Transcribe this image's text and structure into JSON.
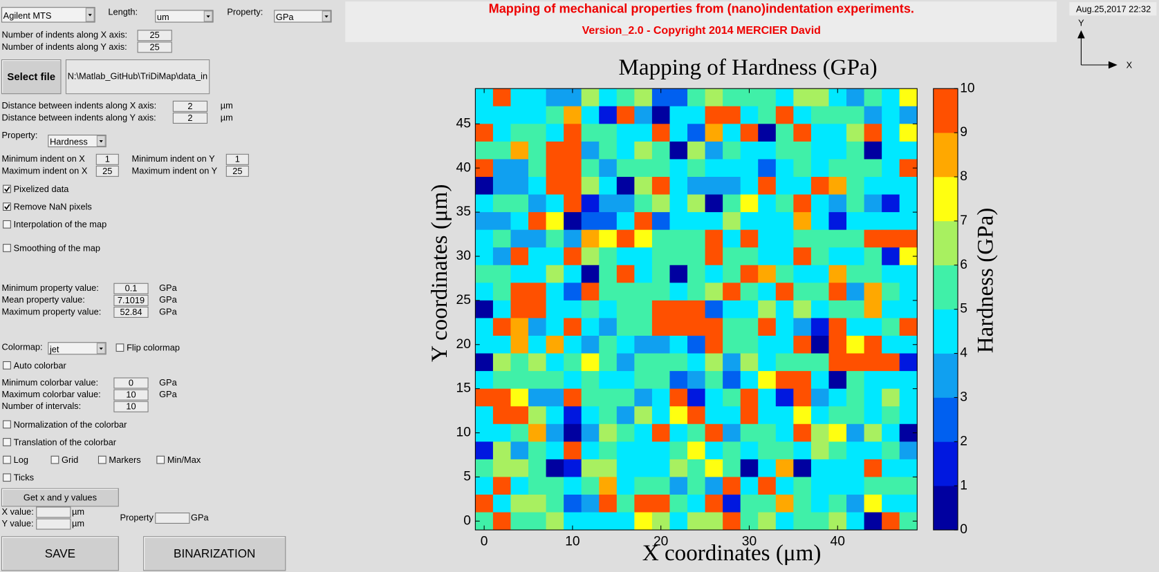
{
  "header": {
    "title": "Mapping of mechanical properties from (nano)indentation experiments.",
    "subtitle": "Version_2.0 - Copyright 2014 MERCIER David",
    "date": "Aug.25,2017 22:32",
    "axis_y": "Y",
    "axis_x": "X"
  },
  "controls": {
    "instrument": "Agilent MTS",
    "length_label": "Length:",
    "length_unit": "um",
    "property_label": "Property:",
    "property_unit": "GPa",
    "indents_x_label": "Number of indents along X axis:",
    "indents_x": "25",
    "indents_y_label": "Number of indents along Y axis:",
    "indents_y": "25",
    "select_file": "Select file",
    "file_path": "N:\\Matlab_GitHub\\TriDiMap\\data_in",
    "dist_x_label": "Distance between indents along X axis:",
    "dist_x": "2",
    "dist_y_label": "Distance between indents along Y axis:",
    "dist_y": "2",
    "unit_um": "µm",
    "unit_gpa": "GPa",
    "property2_label": "Property:",
    "property2": "Hardness",
    "min_x_label": "Minimum indent on X",
    "min_x": "1",
    "min_y_label": "Minimum indent on Y",
    "min_y": "1",
    "max_x_label": "Maximum indent on X",
    "max_x": "25",
    "max_y_label": "Maximum indent on Y",
    "max_y": "25",
    "min_prop_label": "Minimum property value:",
    "min_prop": "0.1",
    "mean_prop_label": "Mean property value:",
    "mean_prop": "7.1019",
    "max_prop_label": "Maximum property value:",
    "max_prop": "52.84",
    "colormap_label": "Colormap:",
    "colormap": "jet",
    "min_cb_label": "Minimum colorbar value:",
    "min_cb": "0",
    "max_cb_label": "Maximum colorbar value:",
    "max_cb": "10",
    "n_int_label": "Number of intervals:",
    "n_int": "10",
    "get_xy": "Get x and y values",
    "x_value_label": "X value:",
    "y_value_label": "Y value:",
    "prop3_label": "Property",
    "save": "SAVE",
    "binarization": "BINARIZATION",
    "checkboxes": [
      {
        "label": "Pixelized data",
        "checked": true
      },
      {
        "label": "Remove NaN pixels",
        "checked": true
      },
      {
        "label": "Interpolation of the map",
        "checked": false
      },
      {
        "label": "Smoothing of the map",
        "checked": false
      },
      {
        "label": "Flip colormap",
        "checked": false
      },
      {
        "label": "Auto colorbar",
        "checked": false
      },
      {
        "label": "Normalization of the colorbar",
        "checked": false
      },
      {
        "label": "Translation of the colorbar",
        "checked": false
      },
      {
        "label": "Log",
        "checked": false
      },
      {
        "label": "Grid",
        "checked": false
      },
      {
        "label": "Markers",
        "checked": false
      },
      {
        "label": "Min/Max",
        "checked": false
      },
      {
        "label": "Ticks",
        "checked": false
      }
    ]
  },
  "chart_data": {
    "type": "heatmap",
    "title": "Mapping of Hardness (GPa)",
    "xlabel": "X coordinates (μm)",
    "ylabel": "Y coordinates (μm)",
    "x": [
      0,
      2,
      4,
      6,
      8,
      10,
      12,
      14,
      16,
      18,
      20,
      22,
      24,
      26,
      28,
      30,
      32,
      34,
      36,
      38,
      40,
      42,
      44,
      46,
      48
    ],
    "y": [
      48,
      46,
      44,
      42,
      40,
      38,
      36,
      34,
      32,
      30,
      28,
      26,
      24,
      22,
      20,
      18,
      16,
      14,
      12,
      10,
      8,
      6,
      4,
      2,
      0
    ],
    "values": [
      [
        4.5,
        9.5,
        4.5,
        4.5,
        3.5,
        3.5,
        6.5,
        4.5,
        5.5,
        6.5,
        2.5,
        2.5,
        5.5,
        6.5,
        5.5,
        5.5,
        5.5,
        4.5,
        6.5,
        6.5,
        4.5,
        3.5,
        5.5,
        4.5,
        7.5
      ],
      [
        4.5,
        4.5,
        4.5,
        4.5,
        5.5,
        8.5,
        4.5,
        1.5,
        9.5,
        3.5,
        0.5,
        4.5,
        4.5,
        9.5,
        9.5,
        4.5,
        5.5,
        9.5,
        4.5,
        5.5,
        5.5,
        5.5,
        3.5,
        4.5,
        3.5
      ],
      [
        9.5,
        4.5,
        5.5,
        5.5,
        4.5,
        9.5,
        5.5,
        5.5,
        4.5,
        4.5,
        9.5,
        4.5,
        2.5,
        8.5,
        4.5,
        9.5,
        0.5,
        5.5,
        9.5,
        4.5,
        4.5,
        6.5,
        9.5,
        4.5,
        7.5
      ],
      [
        5.5,
        5.5,
        8.5,
        5.5,
        9.5,
        9.5,
        3.5,
        5.5,
        4.5,
        6.5,
        5.5,
        0.5,
        6.5,
        3.5,
        5.5,
        4.5,
        4.5,
        5.5,
        5.5,
        4.5,
        4.5,
        5.5,
        0.5,
        4.5,
        4.5
      ],
      [
        9.5,
        3.5,
        3.5,
        5.5,
        9.5,
        9.5,
        5.5,
        3.5,
        5.5,
        5.5,
        5.5,
        4.5,
        5.5,
        4.5,
        4.5,
        4.5,
        2.5,
        4.5,
        5.5,
        4.5,
        5.5,
        5.5,
        5.5,
        4.5,
        9.5
      ],
      [
        0.5,
        3.5,
        3.5,
        4.5,
        9.5,
        9.5,
        6.5,
        4.5,
        0.5,
        6.5,
        9.5,
        4.5,
        3.5,
        3.5,
        3.5,
        4.5,
        9.5,
        4.5,
        4.5,
        9.5,
        8.5,
        5.5,
        4.5,
        4.5,
        4.5
      ],
      [
        4.5,
        5.5,
        5.5,
        3.5,
        4.5,
        9.5,
        1.5,
        3.5,
        3.5,
        5.5,
        6.5,
        4.5,
        6.5,
        0.5,
        5.5,
        7.5,
        4.5,
        5.5,
        9.5,
        4.5,
        3.5,
        5.5,
        3.5,
        1.5,
        4.5
      ],
      [
        3.5,
        3.5,
        4.5,
        9.5,
        7.5,
        0.5,
        2.5,
        2.5,
        4.5,
        9.5,
        2.5,
        4.5,
        4.5,
        4.5,
        6.5,
        4.5,
        4.5,
        4.5,
        8.5,
        4.5,
        1.5,
        4.5,
        4.5,
        4.5,
        4.5
      ],
      [
        4.5,
        5.5,
        3.5,
        3.5,
        5.5,
        3.5,
        8.5,
        7.5,
        9.5,
        7.5,
        5.5,
        5.5,
        5.5,
        9.5,
        4.5,
        9.5,
        4.5,
        4.5,
        5.5,
        5.5,
        5.5,
        5.5,
        9.5,
        9.5,
        9.5
      ],
      [
        4.5,
        3.5,
        9.5,
        4.5,
        4.5,
        9.5,
        6.5,
        5.5,
        4.5,
        4.5,
        5.5,
        5.5,
        5.5,
        9.5,
        5.5,
        5.5,
        4.5,
        4.5,
        9.5,
        5.5,
        4.5,
        4.5,
        5.5,
        1.5,
        7.5
      ],
      [
        5.5,
        5.5,
        4.5,
        4.5,
        6.5,
        4.5,
        0.5,
        5.5,
        9.5,
        4.5,
        5.5,
        0.5,
        5.5,
        4.5,
        5.5,
        9.5,
        8.5,
        5.5,
        4.5,
        4.5,
        8.5,
        5.5,
        5.5,
        4.5,
        4.5
      ],
      [
        4.5,
        5.5,
        9.5,
        9.5,
        4.5,
        2.5,
        9.5,
        5.5,
        5.5,
        5.5,
        5.5,
        4.5,
        5.5,
        6.5,
        9.5,
        5.5,
        4.5,
        9.5,
        5.5,
        5.5,
        9.5,
        3.5,
        8.5,
        5.5,
        4.5
      ],
      [
        0.5,
        4.5,
        9.5,
        9.5,
        4.5,
        4.5,
        5.5,
        4.5,
        5.5,
        5.5,
        9.5,
        9.5,
        9.5,
        2.5,
        4.5,
        4.5,
        6.5,
        4.5,
        6.5,
        4.5,
        5.5,
        5.5,
        8.5,
        4.5,
        4.5
      ],
      [
        4.5,
        9.5,
        8.5,
        3.5,
        4.5,
        9.5,
        4.5,
        3.5,
        5.5,
        5.5,
        9.5,
        9.5,
        9.5,
        9.5,
        5.5,
        5.5,
        9.5,
        4.5,
        3.5,
        1.5,
        9.5,
        4.5,
        4.5,
        5.5,
        9.5
      ],
      [
        4.5,
        4.5,
        8.5,
        4.5,
        8.5,
        4.5,
        3.5,
        5.5,
        4.5,
        3.5,
        3.5,
        4.5,
        2.5,
        9.5,
        5.5,
        5.5,
        4.5,
        4.5,
        9.5,
        0.5,
        9.5,
        7.5,
        9.5,
        4.5,
        4.5
      ],
      [
        0.5,
        6.5,
        5.5,
        6.5,
        4.5,
        5.5,
        7.5,
        5.5,
        3.5,
        5.5,
        5.5,
        5.5,
        4.5,
        6.5,
        3.5,
        6.5,
        4.5,
        5.5,
        5.5,
        5.5,
        9.5,
        9.5,
        9.5,
        9.5,
        1.5
      ],
      [
        4.5,
        5.5,
        5.5,
        5.5,
        5.5,
        4.5,
        5.5,
        4.5,
        4.5,
        5.5,
        5.5,
        2.5,
        3.5,
        5.5,
        2.5,
        4.5,
        7.5,
        9.5,
        9.5,
        4.5,
        0.5,
        5.5,
        4.5,
        4.5,
        4.5
      ],
      [
        9.5,
        9.5,
        7.5,
        3.5,
        3.5,
        9.5,
        5.5,
        5.5,
        5.5,
        3.5,
        4.5,
        9.5,
        1.5,
        4.5,
        5.5,
        9.5,
        4.5,
        1.5,
        9.5,
        3.5,
        4.5,
        5.5,
        4.5,
        6.5,
        4.5
      ],
      [
        4.5,
        9.5,
        9.5,
        6.5,
        4.5,
        1.5,
        4.5,
        5.5,
        3.5,
        6.5,
        4.5,
        7.5,
        9.5,
        4.5,
        4.5,
        9.5,
        4.5,
        4.5,
        7.5,
        4.5,
        5.5,
        5.5,
        4.5,
        5.5,
        4.5
      ],
      [
        4.5,
        4.5,
        5.5,
        8.5,
        3.5,
        0.5,
        3.5,
        6.5,
        5.5,
        4.5,
        9.5,
        4.5,
        5.5,
        9.5,
        3.5,
        5.5,
        5.5,
        4.5,
        9.5,
        6.5,
        7.5,
        3.5,
        6.5,
        4.5,
        0.5
      ],
      [
        1.5,
        6.5,
        3.5,
        5.5,
        4.5,
        9.5,
        4.5,
        5.5,
        4.5,
        4.5,
        4.5,
        5.5,
        7.5,
        4.5,
        5.5,
        4.5,
        5.5,
        5.5,
        4.5,
        6.5,
        5.5,
        4.5,
        4.5,
        5.5,
        3.5
      ],
      [
        5.5,
        6.5,
        6.5,
        5.5,
        0.5,
        1.5,
        6.5,
        6.5,
        4.5,
        4.5,
        4.5,
        6.5,
        5.5,
        7.5,
        5.5,
        0.5,
        4.5,
        8.5,
        0.5,
        4.5,
        4.5,
        4.5,
        9.5,
        4.5,
        4.5
      ],
      [
        4.5,
        9.5,
        4.5,
        5.5,
        5.5,
        4.5,
        5.5,
        8.5,
        4.5,
        5.5,
        5.5,
        3.5,
        5.5,
        3.5,
        9.5,
        4.5,
        9.5,
        4.5,
        5.5,
        4.5,
        4.5,
        4.5,
        5.5,
        5.5,
        5.5
      ],
      [
        9.5,
        4.5,
        6.5,
        6.5,
        5.5,
        2.5,
        3.5,
        9.5,
        5.5,
        9.5,
        9.5,
        5.5,
        4.5,
        9.5,
        1.5,
        5.5,
        5.5,
        8.5,
        5.5,
        4.5,
        5.5,
        3.5,
        7.5,
        4.5,
        4.5
      ],
      [
        5.5,
        9.5,
        5.5,
        5.5,
        6.5,
        4.5,
        4.5,
        4.5,
        4.5,
        7.5,
        6.5,
        4.5,
        6.5,
        6.5,
        9.5,
        5.5,
        6.5,
        4.5,
        5.5,
        5.5,
        6.5,
        4.5,
        0.5,
        9.5,
        5.5
      ]
    ],
    "xlim": [
      -1,
      49
    ],
    "ylim": [
      -1,
      49
    ],
    "xticks": [
      0,
      10,
      20,
      30,
      40
    ],
    "yticks": [
      0,
      5,
      10,
      15,
      20,
      25,
      30,
      35,
      40,
      45
    ],
    "colorbar": {
      "label": "Hardness (GPa)",
      "lim": [
        0,
        10
      ],
      "ticks": [
        0,
        1,
        2,
        3,
        4,
        5,
        6,
        7,
        8,
        9,
        10
      ],
      "colors": [
        "#0000a0",
        "#0018e0",
        "#0060f0",
        "#10a0f0",
        "#00e8ff",
        "#40f0a8",
        "#a8f060",
        "#ffff10",
        "#ffa800",
        "#ff5000"
      ]
    }
  }
}
